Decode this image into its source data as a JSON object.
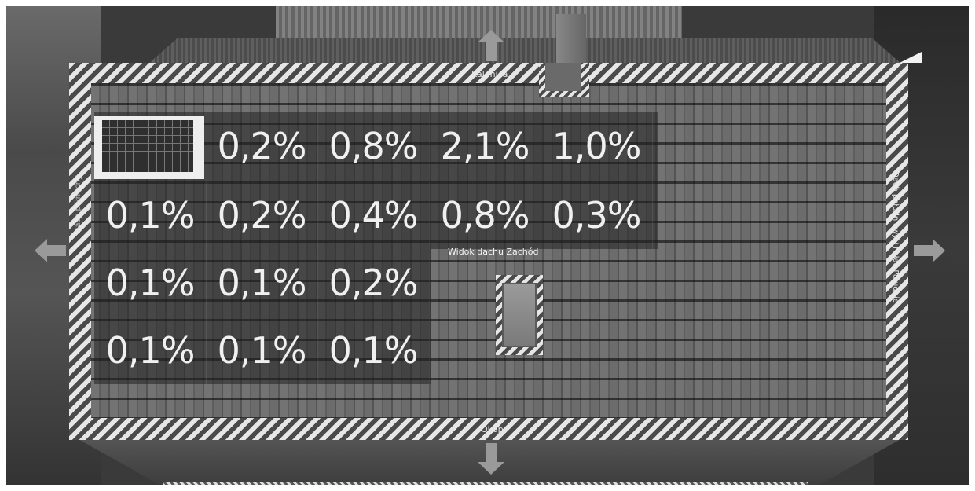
{
  "view": {
    "title": "Widok dachu Zachód",
    "top_label": "Kalenica",
    "bottom_label": "Okap",
    "right_label": "Dach południowy / Połać Południe",
    "left_label": "Dach północny"
  },
  "percent_grid": {
    "rows": [
      [
        "",
        "0,2%",
        "0,8%",
        "2,1%",
        "1,0%"
      ],
      [
        "0,1%",
        "0,2%",
        "0,4%",
        "0,8%",
        "0,3%"
      ],
      [
        "0,1%",
        "0,1%",
        "0,2%"
      ],
      [
        "0,1%",
        "0,1%",
        "0,1%"
      ]
    ]
  },
  "icons": {
    "left": "arrow-left-icon",
    "right": "arrow-right-icon",
    "up": "arrow-up-icon",
    "down": "arrow-down-icon",
    "panel": "solar-panel-icon"
  },
  "colors": {
    "hatch_light": "#e6e6e6",
    "hatch_dark": "#4a4a4a",
    "label_text": "#f0f0f0",
    "arrow": "#9a9a9a"
  }
}
